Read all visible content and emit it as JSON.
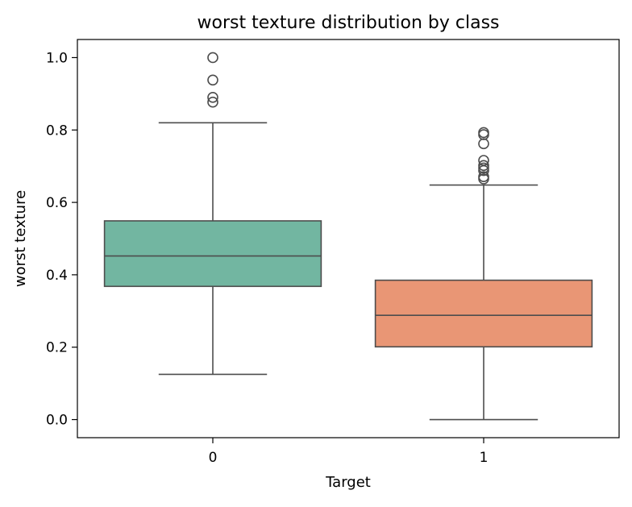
{
  "chart_data": {
    "type": "box",
    "title": "worst texture distribution by class",
    "xlabel": "Target",
    "ylabel": "worst texture",
    "ylim": [
      -0.05,
      1.05
    ],
    "yticks": [
      0.0,
      0.2,
      0.4,
      0.6,
      0.8,
      1.0
    ],
    "ytick_labels": [
      "0.0",
      "0.2",
      "0.4",
      "0.6",
      "0.8",
      "1.0"
    ],
    "categories": [
      "0",
      "1"
    ],
    "grid": false,
    "boxes": [
      {
        "category": "0",
        "color": "#72b6a1",
        "whisker_low": 0.125,
        "q1": 0.368,
        "median": 0.452,
        "q3": 0.549,
        "whisker_high": 0.82,
        "outliers": [
          0.877,
          0.89,
          0.938,
          1.0
        ]
      },
      {
        "category": "1",
        "color": "#e99675",
        "whisker_low": 0.0,
        "q1": 0.201,
        "median": 0.288,
        "q3": 0.385,
        "whisker_high": 0.648,
        "outliers": [
          0.665,
          0.671,
          0.688,
          0.695,
          0.702,
          0.716,
          0.762,
          0.787,
          0.793
        ]
      }
    ]
  }
}
